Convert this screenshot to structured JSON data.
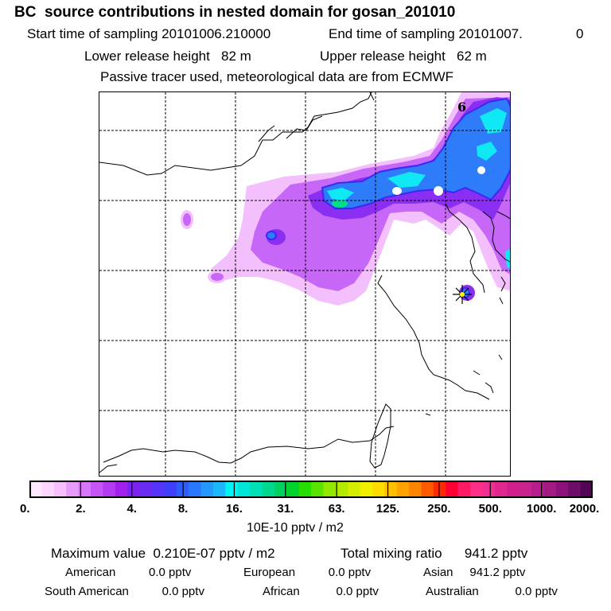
{
  "header": {
    "title": "BC  source contributions in nested domain for gosan_201010",
    "start_label": "Start time of sampling 20101006.210000",
    "end_label": "End time of sampling 20101007.",
    "end_value": "0",
    "lower_label": "Lower release height   82 m",
    "upper_label": "Upper release height   62 m",
    "tracer_note": "Passive tracer used, meteorological data are from ECMWF"
  },
  "map": {
    "panel_number": "6",
    "marker_icon": "receptor-star-icon"
  },
  "colorbar": {
    "tick_labels": [
      "0.",
      "2.",
      "4.",
      "8.",
      "16.",
      "31.",
      "63.",
      "125.",
      "250.",
      "500.",
      "1000.",
      "2000."
    ],
    "colors": [
      "#fde8ff",
      "#fbd6fe",
      "#f7c0fd",
      "#e89cf9",
      "#d877f7",
      "#c555f5",
      "#b33cf2",
      "#a120ee",
      "#7c22ee",
      "#6a2cf2",
      "#5535f7",
      "#3f3ffa",
      "#2f5cfd",
      "#2a78fd",
      "#2498fc",
      "#1cb6fa",
      "#00f3f5",
      "#00e5d8",
      "#00dfb6",
      "#00d890",
      "#00d160",
      "#00d42c",
      "#25de00",
      "#5ae200",
      "#93e800",
      "#b3ea00",
      "#d6ed00",
      "#f2ee00",
      "#ffdc00",
      "#ffc000",
      "#ffa300",
      "#ff8500",
      "#ff5a00",
      "#ff2a00",
      "#ff0035",
      "#ff1a66",
      "#ff2e86",
      "#f02e93",
      "#e0268f",
      "#d11f8e",
      "#c8238e",
      "#b61f8b",
      "#a21a84",
      "#8a127a",
      "#6f0d6a",
      "#520555"
    ],
    "unit": "10E-10 pptv / m2"
  },
  "stats": {
    "max_label": "Maximum value  0.210E-07 pptv / m2",
    "total_label": "Total mixing ratio      941.2 pptv",
    "american": "American          0.0 pptv",
    "european": "European          0.0 pptv",
    "asian": "Asian     941.2 pptv",
    "south_american": "South American          0.0 pptv",
    "african": "African           0.0 pptv",
    "australian": "Australian           0.0 pptv"
  }
}
